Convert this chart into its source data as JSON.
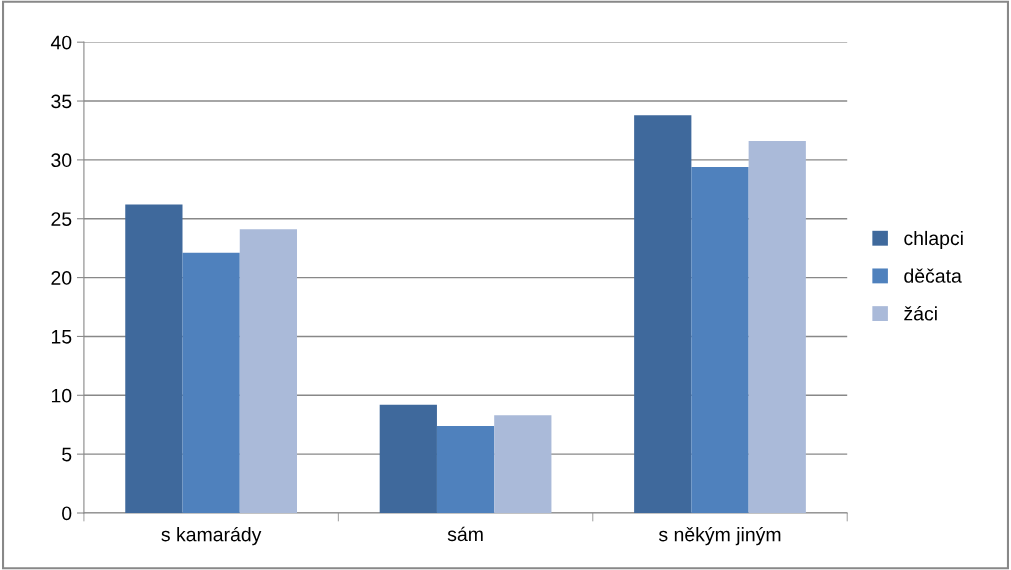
{
  "chart_data": {
    "type": "bar",
    "categories": [
      "s kamarády",
      "sám",
      "s někým jiným"
    ],
    "series": [
      {
        "name": "chlapci",
        "color": "#3f699c",
        "values": [
          26.2,
          9.2,
          33.8
        ]
      },
      {
        "name": "děčata",
        "color": "#4f81bd",
        "values": [
          22.1,
          7.4,
          29.4
        ]
      },
      {
        "name": "žáci",
        "color": "#aabad9",
        "values": [
          24.1,
          8.3,
          31.6
        ]
      }
    ],
    "ylim": [
      0,
      40
    ],
    "yticks": [
      0,
      5,
      10,
      15,
      20,
      25,
      30,
      35,
      40
    ],
    "grid": "y",
    "legend": "right"
  }
}
